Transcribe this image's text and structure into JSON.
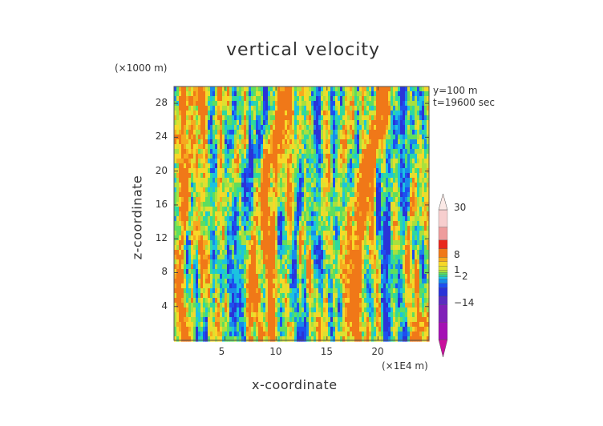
{
  "chart_data": {
    "type": "heatmap",
    "title": "vertical velocity",
    "xlabel": "x-coordinate",
    "ylabel": "z-coordinate",
    "x_units": "(×1E4 m)",
    "y_units": "(×1000 m)",
    "annotations": [
      "y=100 m",
      "t=19600 sec"
    ],
    "xlim": [
      0,
      25
    ],
    "ylim": [
      0,
      30
    ],
    "x_ticks": [
      5,
      10,
      15,
      20
    ],
    "y_ticks": [
      4,
      8,
      12,
      16,
      20,
      24,
      28
    ],
    "colorbar": {
      "tick_labels": [
        "30",
        "8",
        "1",
        "−2",
        "−14"
      ],
      "tick_values": [
        30,
        8,
        1,
        -2,
        -14
      ],
      "levels": [
        -30,
        -22,
        -14,
        -10,
        -6,
        -4,
        -2,
        -1,
        0,
        1,
        2,
        4,
        6,
        8,
        12,
        16,
        22,
        30
      ],
      "colors": [
        "#a410b4",
        "#8020b8",
        "#5a2cc0",
        "#2a33d8",
        "#1d4ff0",
        "#178bea",
        "#1cc3e0",
        "#2ed8a0",
        "#5ede5e",
        "#a8e03e",
        "#dfe030",
        "#f7d828",
        "#f6a91e",
        "#f07818",
        "#e8281e",
        "#ee9c9c",
        "#f7cece"
      ],
      "min_end_color": "#c8109c",
      "max_end_color": "#fbe9e6"
    },
    "field_pattern": "vertical streaks: warm updrafts (yellow-orange) and blue downdrafts alternating along x, stretched in z"
  }
}
